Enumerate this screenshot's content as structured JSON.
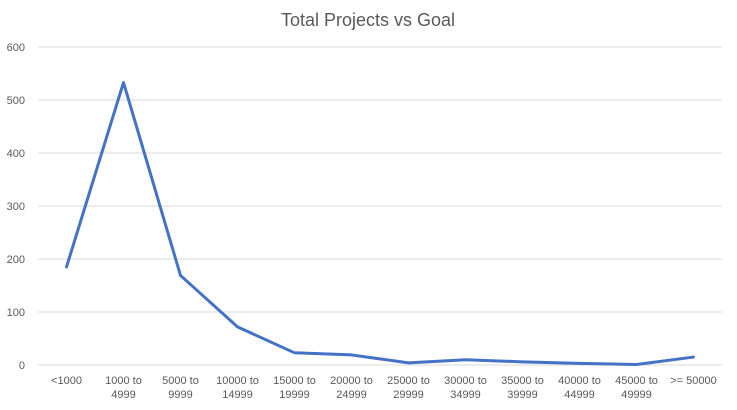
{
  "chart_data": {
    "type": "line",
    "title": "Total Projects vs Goal",
    "xlabel": "",
    "ylabel": "",
    "categories": [
      "<1000",
      "1000 to 4999",
      "5000 to 9999",
      "10000 to 14999",
      "15000 to 19999",
      "20000 to 24999",
      "25000 to 29999",
      "30000 to 34999",
      "35000 to 39999",
      "40000 to 44999",
      "45000 to 49999",
      ">= 50000"
    ],
    "category_lines": [
      [
        "<1000"
      ],
      [
        "1000 to",
        "4999"
      ],
      [
        "5000 to",
        "9999"
      ],
      [
        "10000 to",
        "14999"
      ],
      [
        "15000 to",
        "19999"
      ],
      [
        "20000 to",
        "24999"
      ],
      [
        "25000 to",
        "29999"
      ],
      [
        "30000 to",
        "34999"
      ],
      [
        "35000 to",
        "39999"
      ],
      [
        "40000 to",
        "44999"
      ],
      [
        "45000 to",
        "49999"
      ],
      [
        ">= 50000"
      ]
    ],
    "series": [
      {
        "values": [
          185,
          533,
          169,
          72,
          23,
          19,
          4,
          10,
          6,
          3,
          1,
          15
        ]
      }
    ],
    "ylim": [
      0,
      600
    ],
    "yticks": [
      0,
      100,
      200,
      300,
      400,
      500,
      600
    ],
    "grid": true,
    "legend": "none",
    "line_color": "#4472c4"
  }
}
